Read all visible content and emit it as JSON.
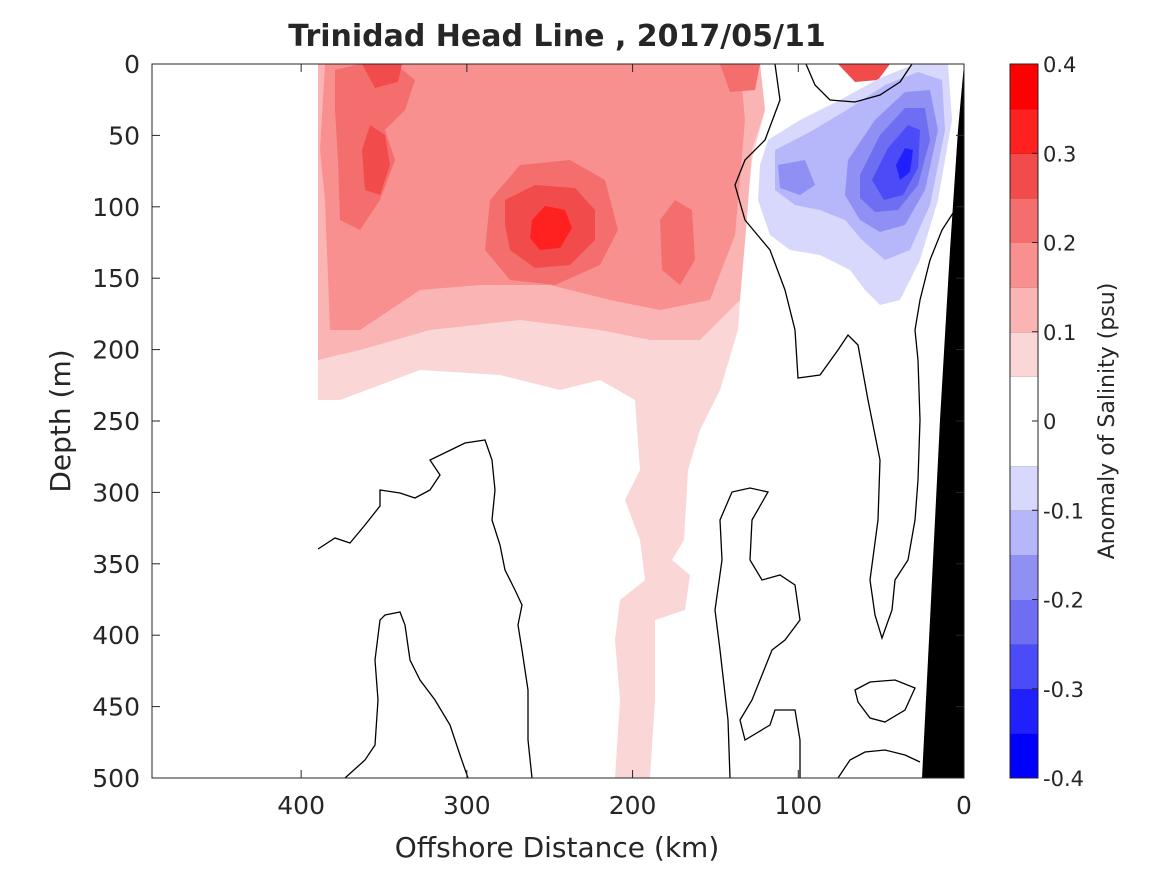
{
  "chart_data": {
    "type": "heatmap",
    "title": "Trinidad Head Line , 2017/05/11",
    "xlabel": "Offshore Distance (km)",
    "ylabel": "Depth (m)",
    "xlim": [
      490,
      0
    ],
    "ylim": [
      500,
      0
    ],
    "x_reversed": true,
    "y_reversed": true,
    "x_ticks": [
      400,
      300,
      200,
      100,
      0
    ],
    "y_ticks": [
      0,
      50,
      100,
      150,
      200,
      250,
      300,
      350,
      400,
      450,
      500
    ],
    "colorbar": {
      "label": "Anomaly of Salinity (psu)",
      "range": [
        -0.4,
        0.4
      ],
      "step": 0.05,
      "tick_values": [
        0.4,
        0.3,
        0.2,
        0.1,
        0,
        -0.1,
        -0.2,
        -0.3,
        -0.4
      ],
      "tick_labels": [
        "0.4",
        "0.3",
        "0.2",
        "0.1",
        "0",
        "-0.1",
        "-0.2",
        "-0.3",
        "-0.4"
      ],
      "colors": [
        "#0000ff",
        "#2020ff",
        "#4b4bf7",
        "#6e6ef2",
        "#9090f4",
        "#b6b6fa",
        "#d8d8fc",
        "#ffffff",
        "#ffffff",
        "#fbd6d6",
        "#fbb4b4",
        "#f99090",
        "#f46e6e",
        "#f24b4b",
        "#ff2020",
        "#ff0000"
      ]
    },
    "positive_features": [
      {
        "name": "offshore positive anomaly",
        "x_range": [
          390,
          140
        ],
        "depth_range": [
          0,
          240
        ],
        "max": 0.3
      },
      {
        "name": "core near 250 km",
        "x": 250,
        "depth": 115,
        "value": 0.3
      },
      {
        "name": "deep tongue near 180 km",
        "x_range": [
          215,
          165
        ],
        "depth_range": [
          240,
          500
        ],
        "value": 0.07
      }
    ],
    "negative_features": [
      {
        "name": "nearshore negative core",
        "x": 40,
        "depth": 70,
        "value": -0.3
      },
      {
        "name": "secondary negative core",
        "x": 100,
        "depth": 75,
        "value": -0.15
      }
    ],
    "land_mask": {
      "color": "#000000",
      "x_at_surface": 0,
      "x_at_500m": 28
    }
  }
}
